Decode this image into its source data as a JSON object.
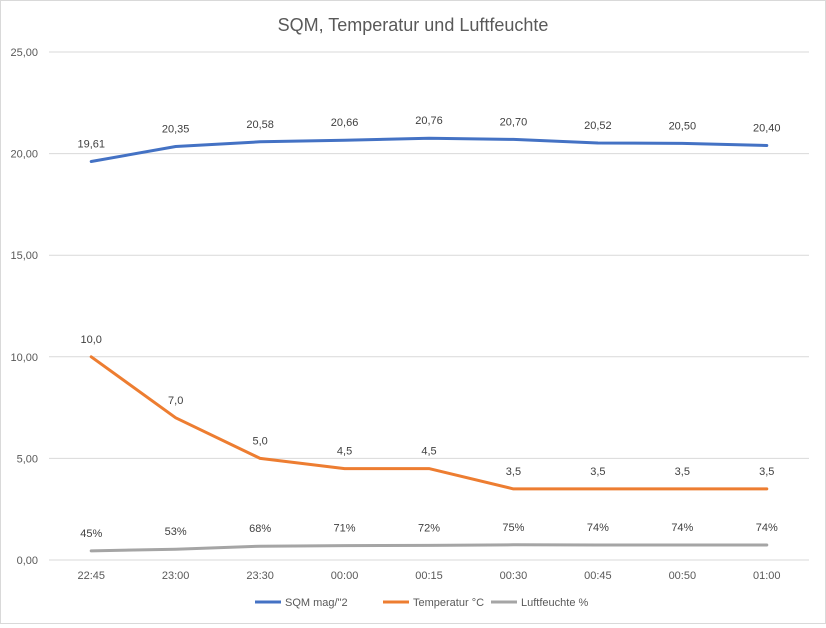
{
  "chart_data": {
    "type": "line",
    "title": "SQM, Temperatur und Luftfeuchte",
    "xlabel": "",
    "ylabel": "",
    "categories": [
      "22:45",
      "23:00",
      "23:30",
      "00:00",
      "00:15",
      "00:30",
      "00:45",
      "00:50",
      "01:00"
    ],
    "ylim": [
      0,
      25
    ],
    "yticks": [
      0,
      5,
      10,
      15,
      20,
      25
    ],
    "ytick_labels": [
      "0,00",
      "5,00",
      "10,00",
      "15,00",
      "20,00",
      "25,00"
    ],
    "grid": true,
    "legend_position": "bottom",
    "series": [
      {
        "name": "SQM mag/\"2",
        "color": "#4472c4",
        "values": [
          19.61,
          20.35,
          20.58,
          20.66,
          20.76,
          20.7,
          20.52,
          20.5,
          20.4
        ],
        "labels": [
          "19,61",
          "20,35",
          "20,58",
          "20,66",
          "20,76",
          "20,70",
          "20,52",
          "20,50",
          "20,40"
        ]
      },
      {
        "name": "Temperatur °C",
        "color": "#ed7d31",
        "values": [
          10.0,
          7.0,
          5.0,
          4.5,
          4.5,
          3.5,
          3.5,
          3.5,
          3.5
        ],
        "labels": [
          "10,0",
          "7,0",
          "5,0",
          "4,5",
          "4,5",
          "3,5",
          "3,5",
          "3,5",
          "3,5"
        ]
      },
      {
        "name": "Luftfeuchte %",
        "color": "#a5a5a5",
        "values": [
          0.45,
          0.53,
          0.68,
          0.71,
          0.72,
          0.75,
          0.74,
          0.74,
          0.74
        ],
        "labels": [
          "45%",
          "53%",
          "68%",
          "71%",
          "72%",
          "75%",
          "74%",
          "74%",
          "74%"
        ]
      }
    ]
  }
}
